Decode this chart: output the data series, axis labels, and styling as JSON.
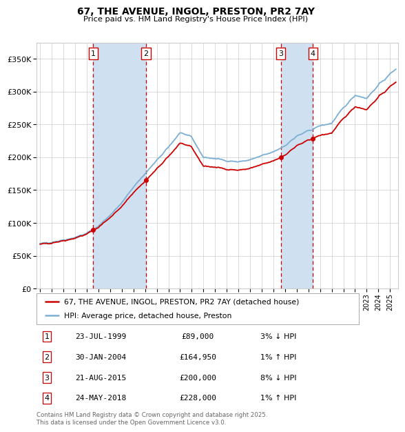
{
  "title_line1": "67, THE AVENUE, INGOL, PRESTON, PR2 7AY",
  "title_line2": "Price paid vs. HM Land Registry's House Price Index (HPI)",
  "yticks": [
    0,
    50000,
    100000,
    150000,
    200000,
    250000,
    300000,
    350000
  ],
  "xlim_start": 1994.7,
  "xlim_end": 2025.7,
  "ylim": [
    0,
    375000
  ],
  "sale_dates": [
    1999.558,
    2004.083,
    2015.644,
    2018.394
  ],
  "sale_prices": [
    89000,
    164950,
    200000,
    228000
  ],
  "sale_labels": [
    "1",
    "2",
    "3",
    "4"
  ],
  "hpi_color": "#7BAFD4",
  "sale_color": "#cc0000",
  "legend_sale": "67, THE AVENUE, INGOL, PRESTON, PR2 7AY (detached house)",
  "legend_hpi": "HPI: Average price, detached house, Preston",
  "table_rows": [
    [
      "1",
      "23-JUL-1999",
      "£89,000",
      "3% ↓ HPI"
    ],
    [
      "2",
      "30-JAN-2004",
      "£164,950",
      "1% ↑ HPI"
    ],
    [
      "3",
      "21-AUG-2015",
      "£200,000",
      "8% ↓ HPI"
    ],
    [
      "4",
      "24-MAY-2018",
      "£228,000",
      "1% ↑ HPI"
    ]
  ],
  "footer": "Contains HM Land Registry data © Crown copyright and database right 2025.\nThis data is licensed under the Open Government Licence v3.0.",
  "background_color": "#ffffff",
  "plot_bg_color": "#ffffff",
  "grid_color": "#cccccc",
  "shade_color": "#cfe0f0"
}
